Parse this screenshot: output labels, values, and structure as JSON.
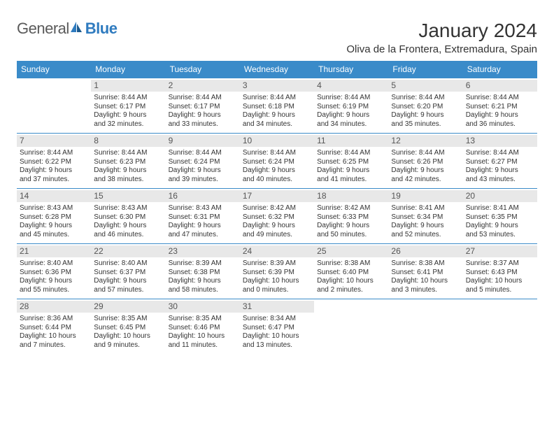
{
  "brand": {
    "part1": "General",
    "part2": "Blue"
  },
  "title": "January 2024",
  "location": "Oliva de la Frontera, Extremadura, Spain",
  "colors": {
    "header_bg": "#3a8bc9",
    "header_text": "#ffffff",
    "day_num_bg": "#e8e8e8",
    "day_num_text": "#555555",
    "border": "#3a8bc9",
    "text": "#333333",
    "brand_gray": "#5a5a5a",
    "brand_blue": "#2f7bbf"
  },
  "layout": {
    "columns": 7,
    "rows": 6,
    "cell_fontsize": 10,
    "header_fontsize": 12,
    "title_fontsize": 28,
    "location_fontsize": 15
  },
  "day_headers": [
    "Sunday",
    "Monday",
    "Tuesday",
    "Wednesday",
    "Thursday",
    "Friday",
    "Saturday"
  ],
  "leading_blanks": 1,
  "days": [
    {
      "n": "1",
      "sunrise": "Sunrise: 8:44 AM",
      "sunset": "Sunset: 6:17 PM",
      "dl1": "Daylight: 9 hours",
      "dl2": "and 32 minutes."
    },
    {
      "n": "2",
      "sunrise": "Sunrise: 8:44 AM",
      "sunset": "Sunset: 6:17 PM",
      "dl1": "Daylight: 9 hours",
      "dl2": "and 33 minutes."
    },
    {
      "n": "3",
      "sunrise": "Sunrise: 8:44 AM",
      "sunset": "Sunset: 6:18 PM",
      "dl1": "Daylight: 9 hours",
      "dl2": "and 34 minutes."
    },
    {
      "n": "4",
      "sunrise": "Sunrise: 8:44 AM",
      "sunset": "Sunset: 6:19 PM",
      "dl1": "Daylight: 9 hours",
      "dl2": "and 34 minutes."
    },
    {
      "n": "5",
      "sunrise": "Sunrise: 8:44 AM",
      "sunset": "Sunset: 6:20 PM",
      "dl1": "Daylight: 9 hours",
      "dl2": "and 35 minutes."
    },
    {
      "n": "6",
      "sunrise": "Sunrise: 8:44 AM",
      "sunset": "Sunset: 6:21 PM",
      "dl1": "Daylight: 9 hours",
      "dl2": "and 36 minutes."
    },
    {
      "n": "7",
      "sunrise": "Sunrise: 8:44 AM",
      "sunset": "Sunset: 6:22 PM",
      "dl1": "Daylight: 9 hours",
      "dl2": "and 37 minutes."
    },
    {
      "n": "8",
      "sunrise": "Sunrise: 8:44 AM",
      "sunset": "Sunset: 6:23 PM",
      "dl1": "Daylight: 9 hours",
      "dl2": "and 38 minutes."
    },
    {
      "n": "9",
      "sunrise": "Sunrise: 8:44 AM",
      "sunset": "Sunset: 6:24 PM",
      "dl1": "Daylight: 9 hours",
      "dl2": "and 39 minutes."
    },
    {
      "n": "10",
      "sunrise": "Sunrise: 8:44 AM",
      "sunset": "Sunset: 6:24 PM",
      "dl1": "Daylight: 9 hours",
      "dl2": "and 40 minutes."
    },
    {
      "n": "11",
      "sunrise": "Sunrise: 8:44 AM",
      "sunset": "Sunset: 6:25 PM",
      "dl1": "Daylight: 9 hours",
      "dl2": "and 41 minutes."
    },
    {
      "n": "12",
      "sunrise": "Sunrise: 8:44 AM",
      "sunset": "Sunset: 6:26 PM",
      "dl1": "Daylight: 9 hours",
      "dl2": "and 42 minutes."
    },
    {
      "n": "13",
      "sunrise": "Sunrise: 8:44 AM",
      "sunset": "Sunset: 6:27 PM",
      "dl1": "Daylight: 9 hours",
      "dl2": "and 43 minutes."
    },
    {
      "n": "14",
      "sunrise": "Sunrise: 8:43 AM",
      "sunset": "Sunset: 6:28 PM",
      "dl1": "Daylight: 9 hours",
      "dl2": "and 45 minutes."
    },
    {
      "n": "15",
      "sunrise": "Sunrise: 8:43 AM",
      "sunset": "Sunset: 6:30 PM",
      "dl1": "Daylight: 9 hours",
      "dl2": "and 46 minutes."
    },
    {
      "n": "16",
      "sunrise": "Sunrise: 8:43 AM",
      "sunset": "Sunset: 6:31 PM",
      "dl1": "Daylight: 9 hours",
      "dl2": "and 47 minutes."
    },
    {
      "n": "17",
      "sunrise": "Sunrise: 8:42 AM",
      "sunset": "Sunset: 6:32 PM",
      "dl1": "Daylight: 9 hours",
      "dl2": "and 49 minutes."
    },
    {
      "n": "18",
      "sunrise": "Sunrise: 8:42 AM",
      "sunset": "Sunset: 6:33 PM",
      "dl1": "Daylight: 9 hours",
      "dl2": "and 50 minutes."
    },
    {
      "n": "19",
      "sunrise": "Sunrise: 8:41 AM",
      "sunset": "Sunset: 6:34 PM",
      "dl1": "Daylight: 9 hours",
      "dl2": "and 52 minutes."
    },
    {
      "n": "20",
      "sunrise": "Sunrise: 8:41 AM",
      "sunset": "Sunset: 6:35 PM",
      "dl1": "Daylight: 9 hours",
      "dl2": "and 53 minutes."
    },
    {
      "n": "21",
      "sunrise": "Sunrise: 8:40 AM",
      "sunset": "Sunset: 6:36 PM",
      "dl1": "Daylight: 9 hours",
      "dl2": "and 55 minutes."
    },
    {
      "n": "22",
      "sunrise": "Sunrise: 8:40 AM",
      "sunset": "Sunset: 6:37 PM",
      "dl1": "Daylight: 9 hours",
      "dl2": "and 57 minutes."
    },
    {
      "n": "23",
      "sunrise": "Sunrise: 8:39 AM",
      "sunset": "Sunset: 6:38 PM",
      "dl1": "Daylight: 9 hours",
      "dl2": "and 58 minutes."
    },
    {
      "n": "24",
      "sunrise": "Sunrise: 8:39 AM",
      "sunset": "Sunset: 6:39 PM",
      "dl1": "Daylight: 10 hours",
      "dl2": "and 0 minutes."
    },
    {
      "n": "25",
      "sunrise": "Sunrise: 8:38 AM",
      "sunset": "Sunset: 6:40 PM",
      "dl1": "Daylight: 10 hours",
      "dl2": "and 2 minutes."
    },
    {
      "n": "26",
      "sunrise": "Sunrise: 8:38 AM",
      "sunset": "Sunset: 6:41 PM",
      "dl1": "Daylight: 10 hours",
      "dl2": "and 3 minutes."
    },
    {
      "n": "27",
      "sunrise": "Sunrise: 8:37 AM",
      "sunset": "Sunset: 6:43 PM",
      "dl1": "Daylight: 10 hours",
      "dl2": "and 5 minutes."
    },
    {
      "n": "28",
      "sunrise": "Sunrise: 8:36 AM",
      "sunset": "Sunset: 6:44 PM",
      "dl1": "Daylight: 10 hours",
      "dl2": "and 7 minutes."
    },
    {
      "n": "29",
      "sunrise": "Sunrise: 8:35 AM",
      "sunset": "Sunset: 6:45 PM",
      "dl1": "Daylight: 10 hours",
      "dl2": "and 9 minutes."
    },
    {
      "n": "30",
      "sunrise": "Sunrise: 8:35 AM",
      "sunset": "Sunset: 6:46 PM",
      "dl1": "Daylight: 10 hours",
      "dl2": "and 11 minutes."
    },
    {
      "n": "31",
      "sunrise": "Sunrise: 8:34 AM",
      "sunset": "Sunset: 6:47 PM",
      "dl1": "Daylight: 10 hours",
      "dl2": "and 13 minutes."
    }
  ]
}
